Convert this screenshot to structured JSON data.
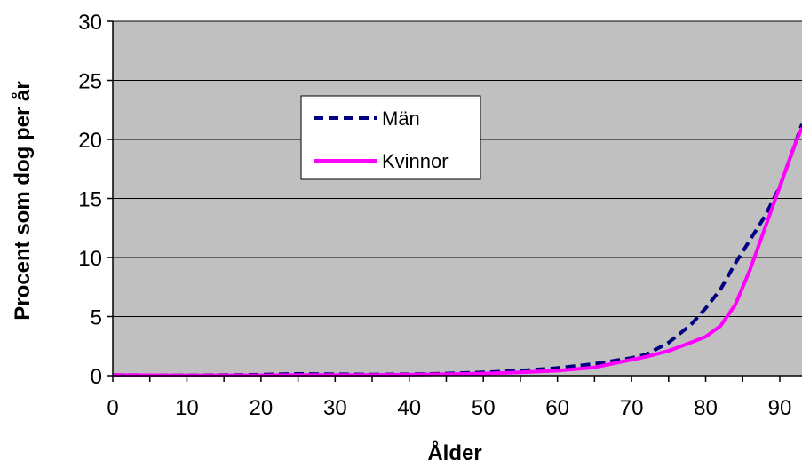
{
  "chart_data": {
    "type": "line",
    "xlabel": "Ålder",
    "ylabel": "Procent som dog per år",
    "xlim": [
      0,
      93
    ],
    "ylim": [
      0,
      30
    ],
    "xticks": [
      0,
      10,
      20,
      30,
      40,
      50,
      60,
      70,
      80,
      90
    ],
    "xtick_labels": [
      "0",
      "10",
      "20",
      "30",
      "40",
      "50",
      "60",
      "70",
      "80",
      "90"
    ],
    "yticks": [
      0,
      5,
      10,
      15,
      20,
      25,
      30
    ],
    "ytick_labels": [
      "0",
      "5",
      "10",
      "15",
      "20",
      "25",
      "30"
    ],
    "grid": "horizontal",
    "plot_background": "#C0C0C0",
    "legend_position": "upper-left",
    "series": [
      {
        "name": "Män",
        "color": "#000080",
        "style": "dashed",
        "x": [
          0,
          10,
          20,
          22,
          25,
          30,
          35,
          40,
          45,
          50,
          55,
          60,
          65,
          70,
          72,
          75,
          78,
          80,
          82,
          84,
          86,
          88,
          90,
          92,
          93
        ],
        "y": [
          0.05,
          0.02,
          0.08,
          0.12,
          0.15,
          0.12,
          0.1,
          0.12,
          0.18,
          0.28,
          0.42,
          0.65,
          1.0,
          1.5,
          1.8,
          2.8,
          4.3,
          5.7,
          7.3,
          9.5,
          11.5,
          13.5,
          16.0,
          19.5,
          21.3
        ]
      },
      {
        "name": "Kvinnor",
        "color": "#FF00FF",
        "style": "solid",
        "x": [
          0,
          10,
          20,
          25,
          30,
          35,
          40,
          45,
          50,
          55,
          60,
          65,
          70,
          72,
          75,
          78,
          80,
          82,
          84,
          86,
          88,
          90,
          92,
          93
        ],
        "y": [
          0.05,
          0.02,
          0.03,
          0.05,
          0.05,
          0.06,
          0.08,
          0.12,
          0.18,
          0.28,
          0.42,
          0.7,
          1.35,
          1.6,
          2.1,
          2.8,
          3.3,
          4.2,
          6.0,
          9.0,
          12.5,
          16.0,
          19.5,
          21.0
        ]
      }
    ]
  }
}
